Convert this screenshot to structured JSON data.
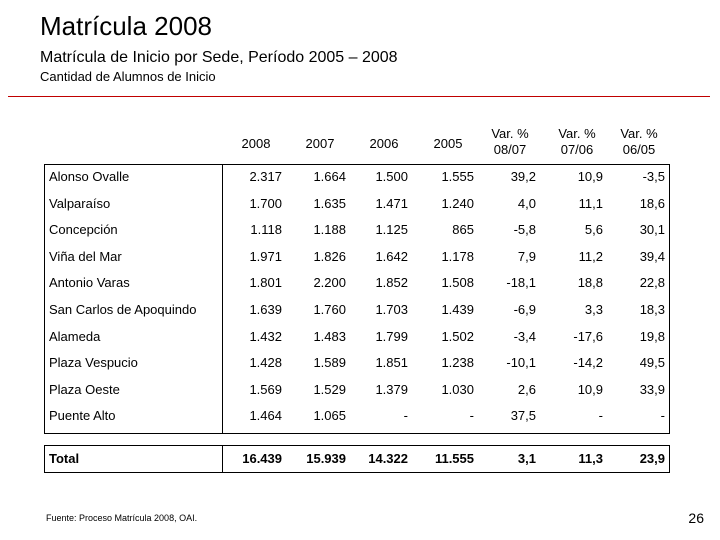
{
  "slide": {
    "title": "Matrícula 2008",
    "subtitle": "Matrícula de Inicio por Sede, Período 2005 – 2008",
    "caption": "Cantidad de Alumnos de Inicio",
    "footer": "Fuente: Proceso Matrícula 2008, OAI.",
    "page_number": "26",
    "accent_color": "#c00000"
  },
  "table": {
    "headers": {
      "y2008": "2008",
      "y2007": "2007",
      "y2006": "2006",
      "y2005": "2005",
      "var0807_line1": "Var. %",
      "var0807_line2": "08/07",
      "var0706_line1": "Var. %",
      "var0706_line2": "07/06",
      "var0605_line1": "Var. %",
      "var0605_line2": "06/05"
    },
    "rows": [
      {
        "name": "Alonso Ovalle",
        "y2008": "2.317",
        "y2007": "1.664",
        "y2006": "1.500",
        "y2005": "1.555",
        "v87": "39,2",
        "v76": "10,9",
        "v65": "-3,5"
      },
      {
        "name": "Valparaíso",
        "y2008": "1.700",
        "y2007": "1.635",
        "y2006": "1.471",
        "y2005": "1.240",
        "v87": "4,0",
        "v76": "11,1",
        "v65": "18,6"
      },
      {
        "name": "Concepción",
        "y2008": "1.118",
        "y2007": "1.188",
        "y2006": "1.125",
        "y2005": "865",
        "v87": "-5,8",
        "v76": "5,6",
        "v65": "30,1"
      },
      {
        "name": "Viña del Mar",
        "y2008": "1.971",
        "y2007": "1.826",
        "y2006": "1.642",
        "y2005": "1.178",
        "v87": "7,9",
        "v76": "11,2",
        "v65": "39,4"
      },
      {
        "name": "Antonio Varas",
        "y2008": "1.801",
        "y2007": "2.200",
        "y2006": "1.852",
        "y2005": "1.508",
        "v87": "-18,1",
        "v76": "18,8",
        "v65": "22,8"
      },
      {
        "name": "San Carlos de Apoquindo",
        "y2008": "1.639",
        "y2007": "1.760",
        "y2006": "1.703",
        "y2005": "1.439",
        "v87": "-6,9",
        "v76": "3,3",
        "v65": "18,3"
      },
      {
        "name": "Alameda",
        "y2008": "1.432",
        "y2007": "1.483",
        "y2006": "1.799",
        "y2005": "1.502",
        "v87": "-3,4",
        "v76": "-17,6",
        "v65": "19,8"
      },
      {
        "name": "Plaza Vespucio",
        "y2008": "1.428",
        "y2007": "1.589",
        "y2006": "1.851",
        "y2005": "1.238",
        "v87": "-10,1",
        "v76": "-14,2",
        "v65": "49,5"
      },
      {
        "name": "Plaza Oeste",
        "y2008": "1.569",
        "y2007": "1.529",
        "y2006": "1.379",
        "y2005": "1.030",
        "v87": "2,6",
        "v76": "10,9",
        "v65": "33,9"
      },
      {
        "name": "Puente Alto",
        "y2008": "1.464",
        "y2007": "1.065",
        "y2006": "-",
        "y2005": "-",
        "v87": "37,5",
        "v76": "-",
        "v65": "-"
      }
    ],
    "total": {
      "name": "Total",
      "y2008": "16.439",
      "y2007": "15.939",
      "y2006": "14.322",
      "y2005": "11.555",
      "v87": "3,1",
      "v76": "11,3",
      "v65": "23,9"
    }
  }
}
